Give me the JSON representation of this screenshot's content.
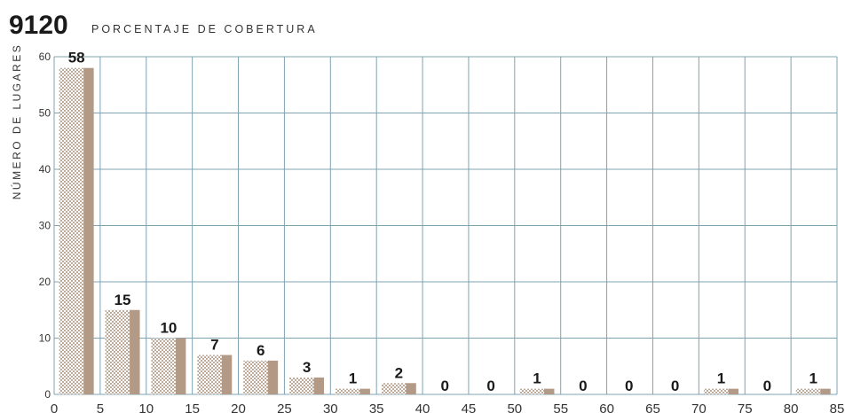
{
  "chart_data": {
    "type": "bar",
    "title_code": "9120",
    "title": "PORCENTAJE DE COBERTURA",
    "ylabel": "NÚMERO DE LUGARES",
    "xlabel": "",
    "x_ticks": [
      "0",
      "5",
      "10",
      "15",
      "20",
      "25",
      "30",
      "35",
      "40",
      "45",
      "50",
      "55",
      "60",
      "65",
      "70",
      "75",
      "80",
      "85"
    ],
    "y_ticks": [
      "0",
      "10",
      "20",
      "30",
      "40",
      "50",
      "60"
    ],
    "xlim": [
      0,
      85
    ],
    "ylim": [
      0,
      60
    ],
    "grid": true,
    "bins": [
      {
        "from": 0,
        "to": 5,
        "value": 58,
        "label": "58"
      },
      {
        "from": 5,
        "to": 10,
        "value": 15,
        "label": "15"
      },
      {
        "from": 10,
        "to": 15,
        "value": 10,
        "label": "10"
      },
      {
        "from": 15,
        "to": 20,
        "value": 7,
        "label": "7"
      },
      {
        "from": 20,
        "to": 25,
        "value": 6,
        "label": "6"
      },
      {
        "from": 25,
        "to": 30,
        "value": 3,
        "label": "3"
      },
      {
        "from": 30,
        "to": 35,
        "value": 1,
        "label": "1"
      },
      {
        "from": 35,
        "to": 40,
        "value": 2,
        "label": "2"
      },
      {
        "from": 40,
        "to": 45,
        "value": 0,
        "label": "0"
      },
      {
        "from": 45,
        "to": 50,
        "value": 0,
        "label": "0"
      },
      {
        "from": 50,
        "to": 55,
        "value": 1,
        "label": "1"
      },
      {
        "from": 55,
        "to": 60,
        "value": 0,
        "label": "0"
      },
      {
        "from": 60,
        "to": 65,
        "value": 0,
        "label": "0"
      },
      {
        "from": 65,
        "to": 70,
        "value": 0,
        "label": "0"
      },
      {
        "from": 70,
        "to": 75,
        "value": 1,
        "label": "1"
      },
      {
        "from": 75,
        "to": 80,
        "value": 0,
        "label": "0"
      },
      {
        "from": 80,
        "to": 85,
        "value": 1,
        "label": "1"
      }
    ],
    "colors": {
      "grid": "#7fa3b3",
      "bar_solid": "#b29a86",
      "bar_dots": "#b29a86",
      "bar_dots_bg": "#ffffff",
      "text": "#1a1a1a"
    }
  }
}
